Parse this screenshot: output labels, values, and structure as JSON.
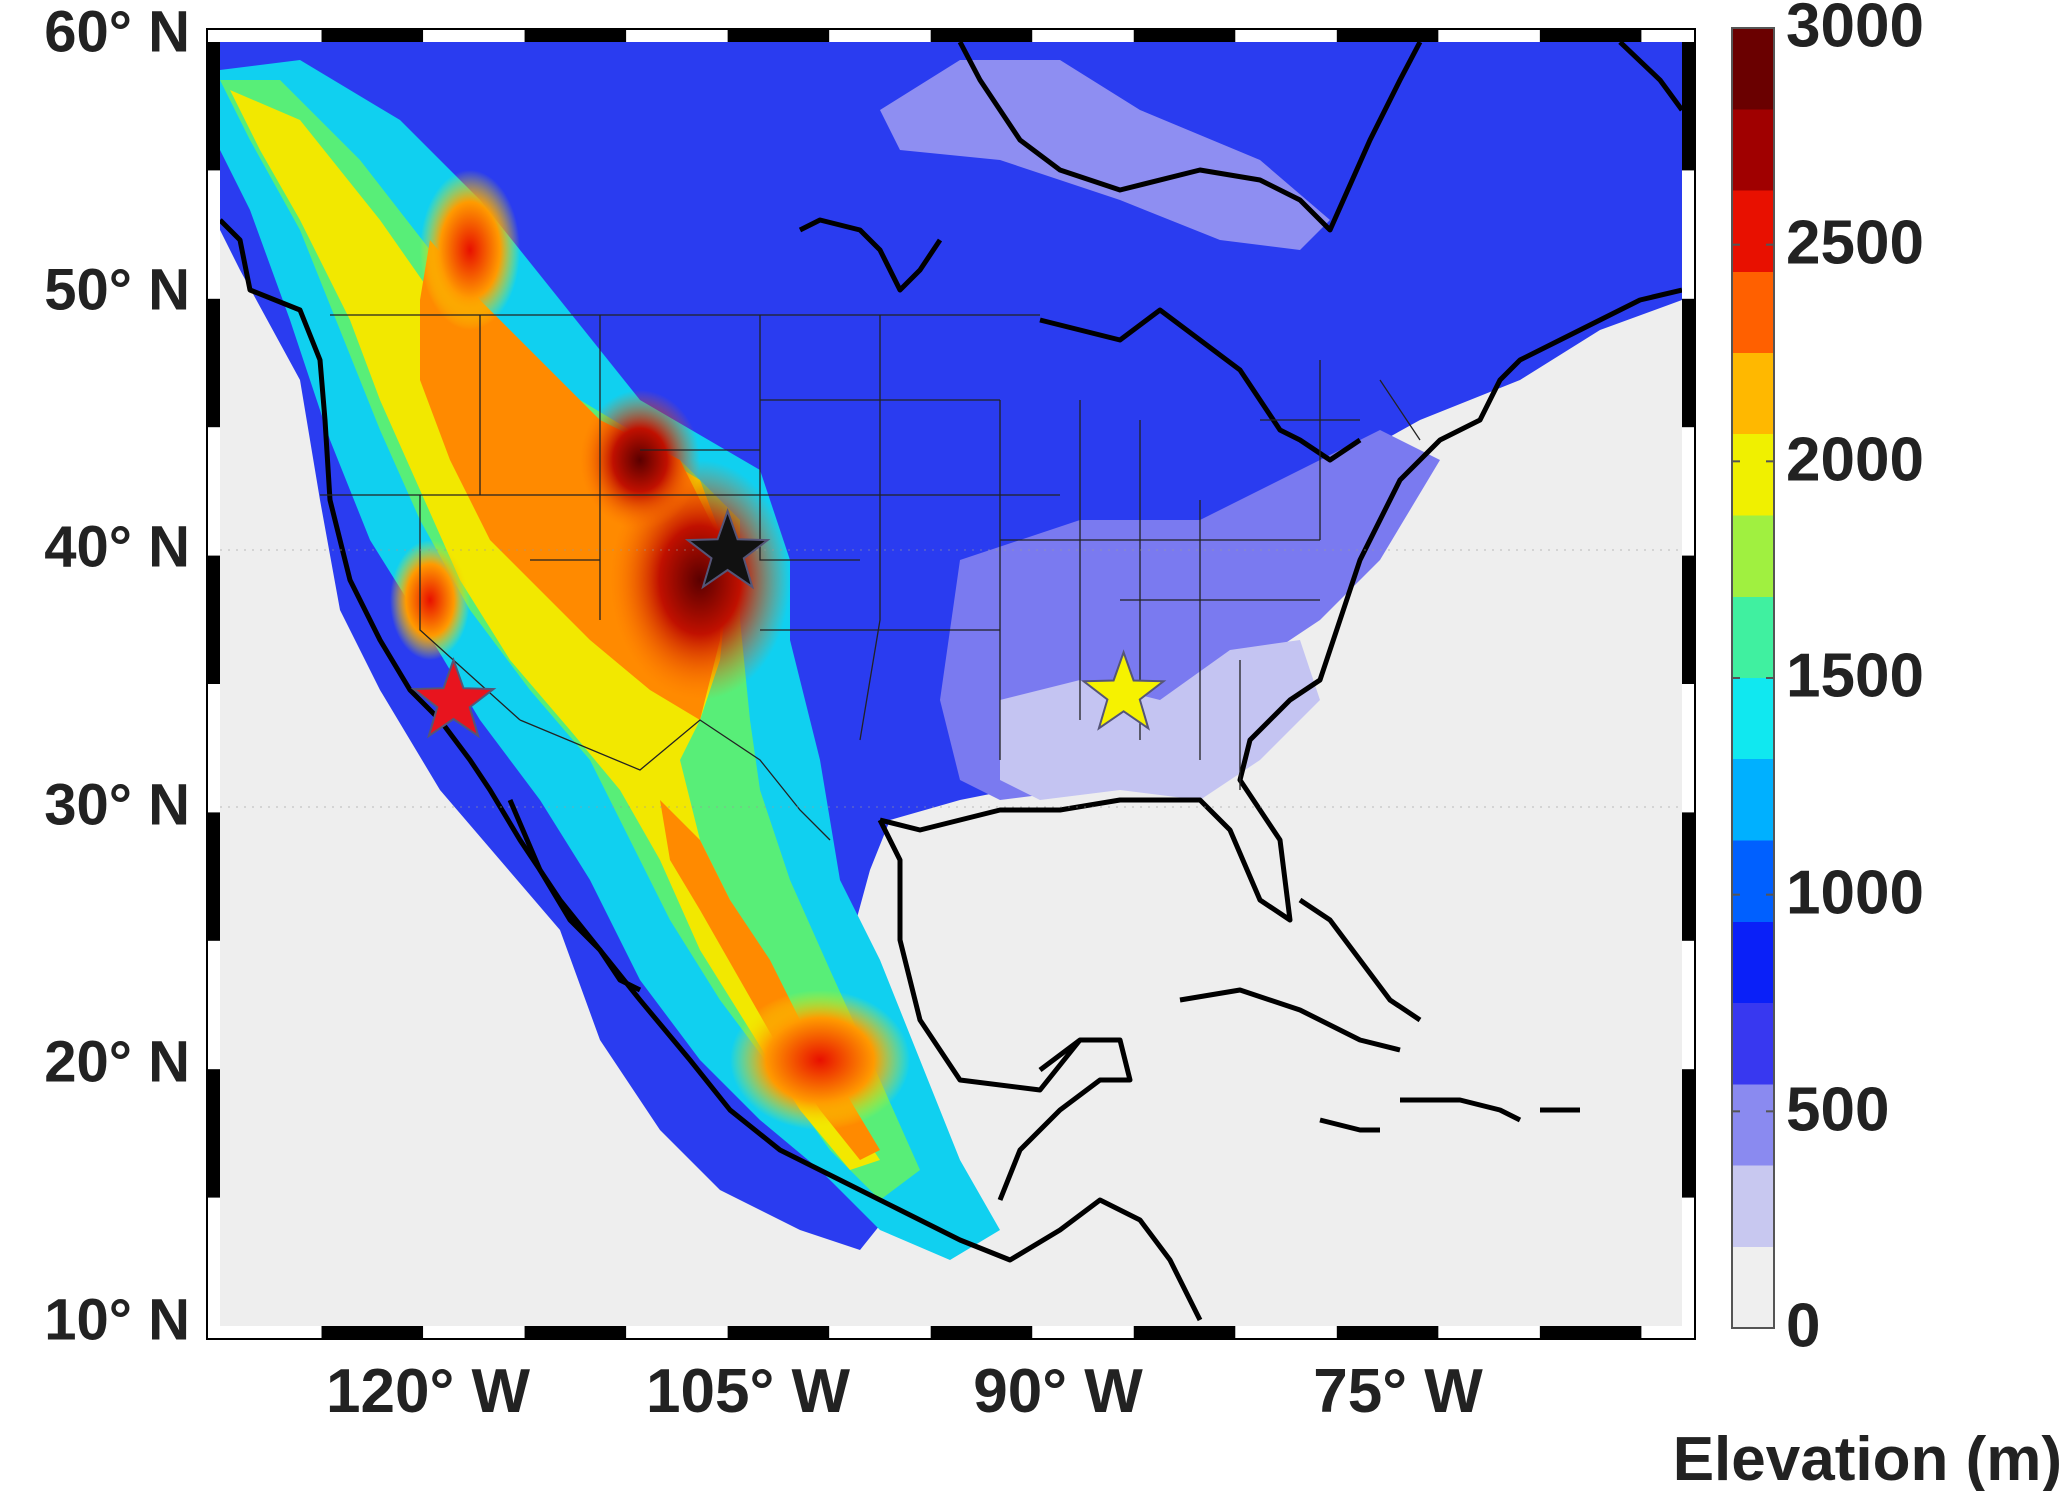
{
  "map": {
    "lat_labels": [
      "60° N",
      "50° N",
      "40° N",
      "30° N",
      "20° N",
      "10° N"
    ],
    "lon_labels": [
      "120° W",
      "105° W",
      "90° W",
      "75° W"
    ],
    "extent": {
      "lon_min": -130,
      "lon_max": -58,
      "lat_min": 10,
      "lat_max": 60
    },
    "markers": [
      {
        "name": "red-star",
        "lon": -118.5,
        "lat": 34.3,
        "color": "#e8141e"
      },
      {
        "name": "black-star",
        "lon": -105,
        "lat": 40.1,
        "color": "#111111"
      },
      {
        "name": "yellow-star",
        "lon": -85.5,
        "lat": 34.6,
        "color": "#f6f200"
      }
    ],
    "ocean_color": "#eeeeee"
  },
  "colorbar": {
    "title": "Elevation (m)",
    "ticks": [
      "3000",
      "2500",
      "2000",
      "1500",
      "1000",
      "500",
      "0"
    ],
    "range": [
      0,
      3000
    ],
    "colors": [
      "#efefef",
      "#c8c8f0",
      "#8a8af0",
      "#3838f0",
      "#0a20f8",
      "#0060ff",
      "#00b0ff",
      "#10e8f0",
      "#40f0a0",
      "#a0f040",
      "#f0f000",
      "#ffb800",
      "#ff6000",
      "#e81000",
      "#a00000",
      "#6a0000"
    ]
  }
}
